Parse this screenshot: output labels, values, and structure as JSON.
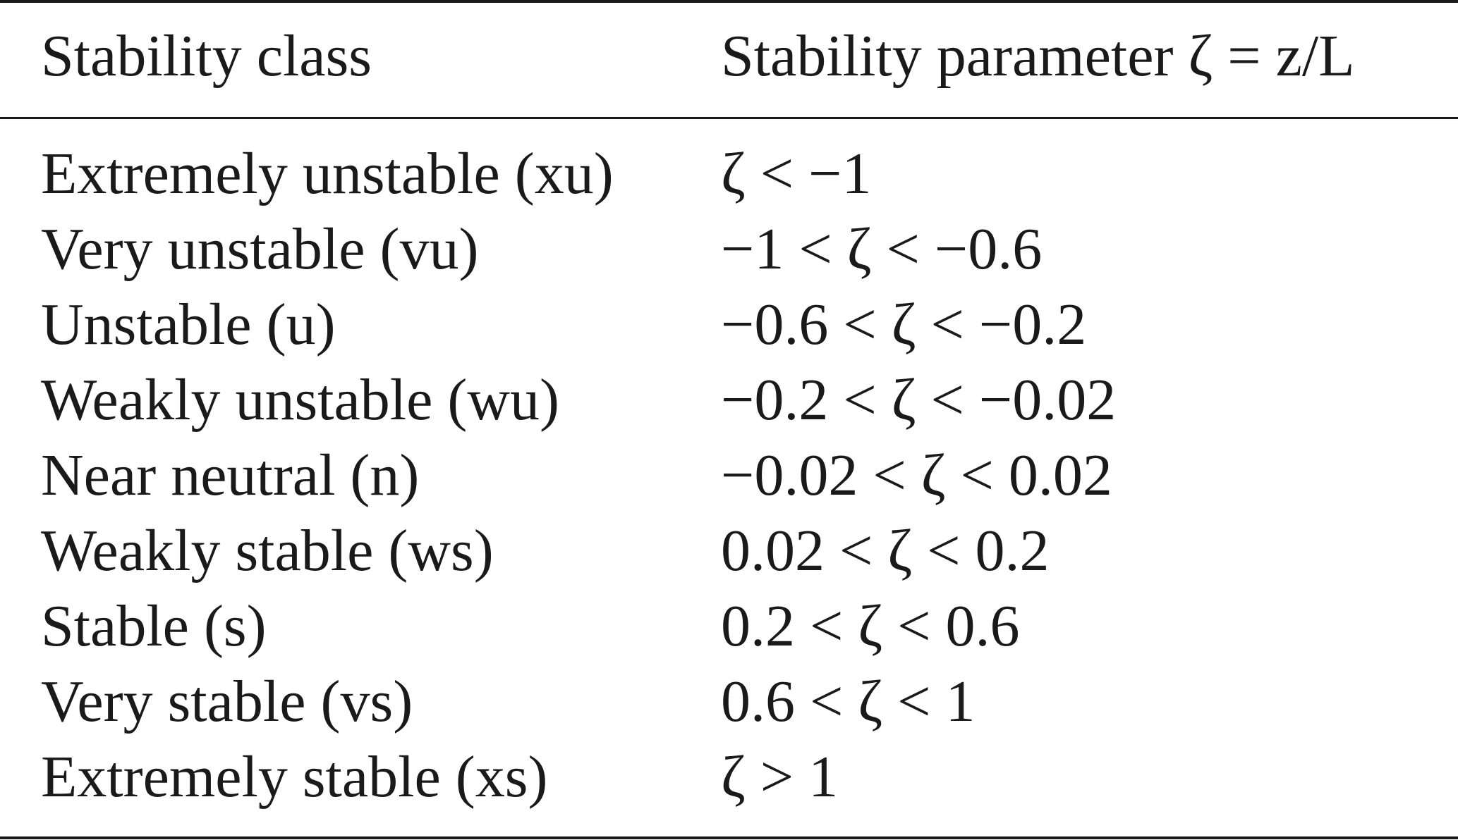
{
  "table": {
    "headers": {
      "class": "Stability class",
      "parameter": "Stability parameter ζ = z/L"
    },
    "rows": [
      {
        "class": "Extremely unstable (xu)",
        "range": "ζ < −1"
      },
      {
        "class": "Very unstable (vu)",
        "range": "−1 < ζ < −0.6"
      },
      {
        "class": "Unstable (u)",
        "range": "−0.6 < ζ < −0.2"
      },
      {
        "class": "Weakly unstable (wu)",
        "range": "−0.2 < ζ < −0.02"
      },
      {
        "class": "Near neutral (n)",
        "range": "−0.02 < ζ < 0.02"
      },
      {
        "class": "Weakly stable (ws)",
        "range": "0.02 < ζ < 0.2"
      },
      {
        "class": "Stable (s)",
        "range": "0.2 < ζ < 0.6"
      },
      {
        "class": "Very stable (vs)",
        "range": "0.6 < ζ < 1"
      },
      {
        "class": "Extremely stable (xs)",
        "range": "ζ > 1"
      }
    ]
  }
}
